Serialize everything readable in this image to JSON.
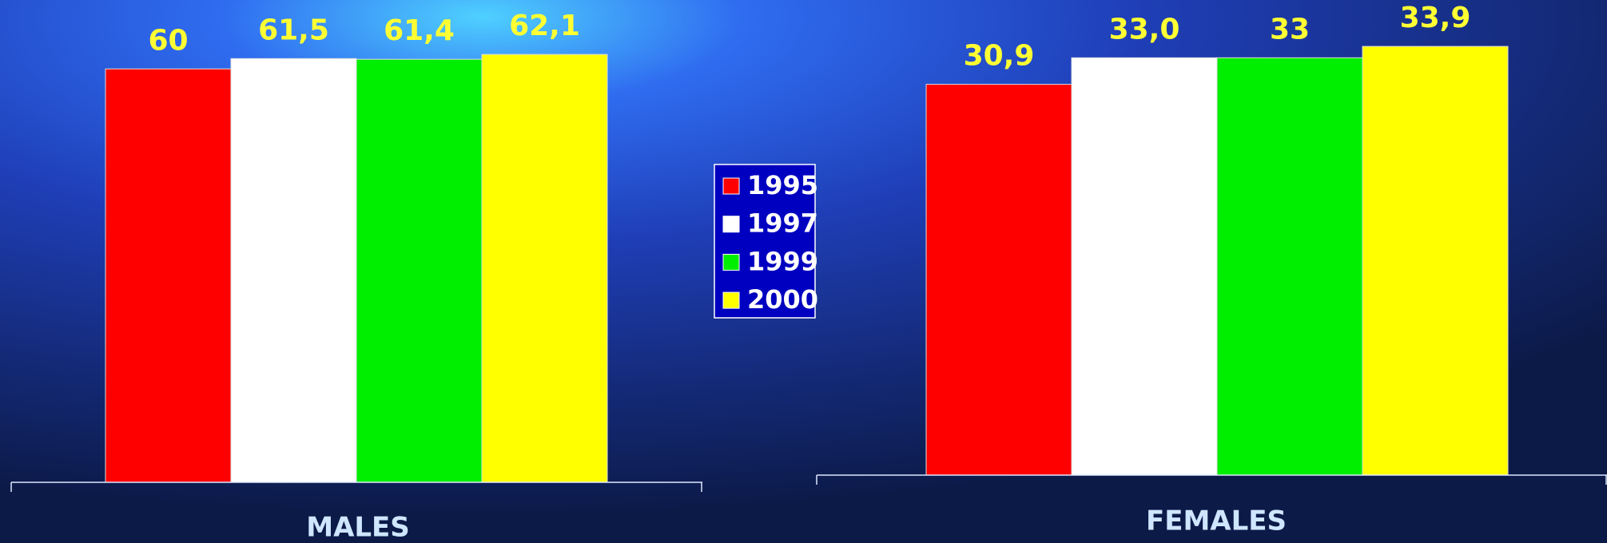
{
  "chart_data": [
    {
      "type": "bar",
      "categories": [
        "MALES"
      ],
      "ylim": [
        0,
        70
      ],
      "series": [
        {
          "name": "1995",
          "color": "#ff0000",
          "values": [
            60
          ],
          "value_labels": [
            "60"
          ]
        },
        {
          "name": "1997",
          "color": "#ffffff",
          "values": [
            61.5
          ],
          "value_labels": [
            "61,5"
          ]
        },
        {
          "name": "1999",
          "color": "#00ee00",
          "values": [
            61.4
          ],
          "value_labels": [
            "61,4"
          ]
        },
        {
          "name": "2000",
          "color": "#ffff00",
          "values": [
            62.1
          ],
          "value_labels": [
            "62,1"
          ]
        }
      ]
    },
    {
      "type": "bar",
      "categories": [
        "FEMALES"
      ],
      "ylim": [
        0,
        37
      ],
      "series": [
        {
          "color": "#ff0000",
          "values": [
            30.9
          ],
          "value_labels": [
            "30,9"
          ]
        },
        {
          "color": "#ffffff",
          "values": [
            33.0
          ],
          "value_labels": [
            "33,0"
          ]
        },
        {
          "color": "#00ee00",
          "values": [
            33
          ],
          "value_labels": [
            "33"
          ]
        },
        {
          "color": "#ffff00",
          "values": [
            33.9
          ],
          "value_labels": [
            "33,9"
          ]
        }
      ]
    }
  ]
}
